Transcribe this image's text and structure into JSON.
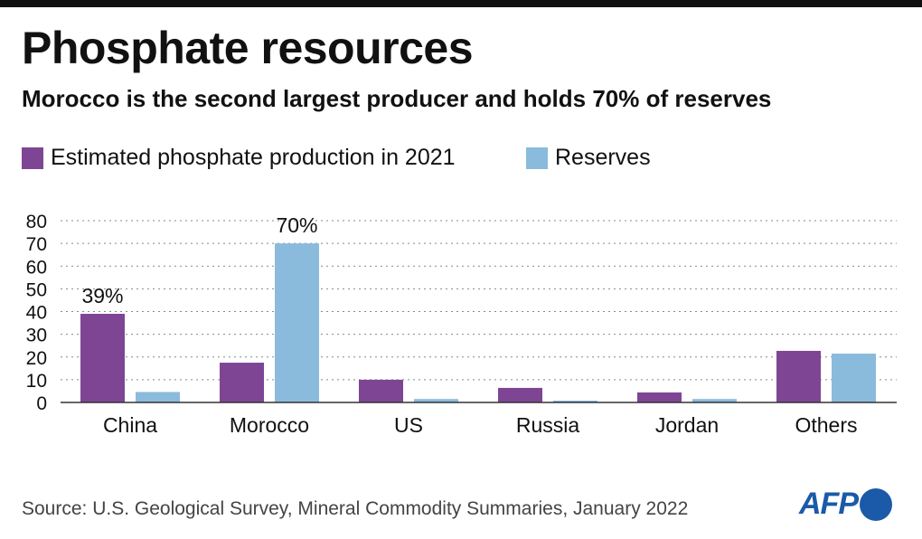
{
  "header": {
    "title": "Phosphate resources",
    "subtitle": "Morocco is the second largest producer and holds 70% of reserves"
  },
  "footer": {
    "source": "Source: U.S. Geological Survey, Mineral Commodity Summaries, January 2022",
    "logo": "AFP"
  },
  "chart_data": {
    "type": "bar",
    "categories": [
      "China",
      "Morocco",
      "US",
      "Russia",
      "Jordan",
      "Others"
    ],
    "series": [
      {
        "name": "Estimated phosphate production in 2021",
        "color": "#7f4595",
        "values": [
          39,
          17.5,
          10,
          6.4,
          4.4,
          22.7
        ]
      },
      {
        "name": "Reserves",
        "color": "#8abbdd",
        "values": [
          4.6,
          70,
          1.5,
          0.8,
          1.5,
          21.5
        ]
      }
    ],
    "data_labels": [
      {
        "category": "China",
        "series": 0,
        "text": "39%"
      },
      {
        "category": "Morocco",
        "series": 1,
        "text": "70%"
      }
    ],
    "yticks": [
      0,
      10,
      20,
      30,
      40,
      50,
      60,
      70,
      80
    ],
    "ylim": [
      0,
      80
    ],
    "grid": true,
    "legend": "top-left"
  }
}
